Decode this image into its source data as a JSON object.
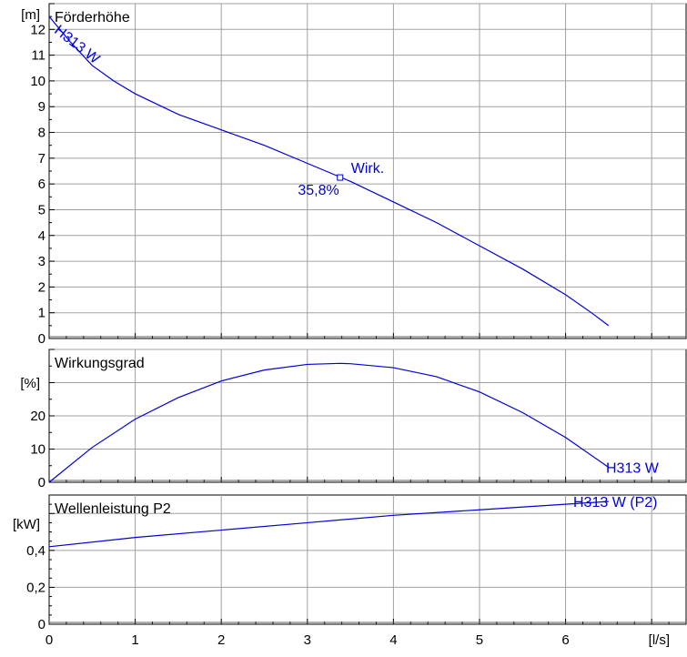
{
  "chart_data": [
    {
      "type": "line",
      "title": "Förderhöhe",
      "ylabel": "[m]",
      "xlim": [
        0,
        7.4
      ],
      "ylim": [
        0,
        13
      ],
      "yticks": [
        "0",
        "1",
        "2",
        "3",
        "4",
        "5",
        "6",
        "7",
        "8",
        "9",
        "10",
        "11",
        "12"
      ],
      "series": [
        {
          "name": "H313 W",
          "x": [
            0,
            0.25,
            0.5,
            0.75,
            1.0,
            1.5,
            2.0,
            2.5,
            3.0,
            3.5,
            4.0,
            4.5,
            5.0,
            5.5,
            6.0,
            6.3,
            6.5
          ],
          "y": [
            12.5,
            11.5,
            10.6,
            10.0,
            9.5,
            8.7,
            8.1,
            7.5,
            6.8,
            6.1,
            5.3,
            4.5,
            3.6,
            2.7,
            1.7,
            1.0,
            0.5
          ]
        }
      ],
      "annotations": [
        {
          "text": "Wirk.",
          "x": 3.38,
          "y": 6.25
        },
        {
          "text": "35,8%",
          "x": 3.38,
          "y": 6.25
        }
      ]
    },
    {
      "type": "line",
      "title": "Wirkungsgrad",
      "ylabel": "[%]",
      "xlim": [
        0,
        7.4
      ],
      "ylim": [
        0,
        40
      ],
      "yticks": [
        "0",
        "10",
        "20"
      ],
      "series": [
        {
          "name": "H313 W",
          "x": [
            0,
            0.5,
            1.0,
            1.5,
            2.0,
            2.5,
            3.0,
            3.38,
            3.5,
            4.0,
            4.5,
            5.0,
            5.5,
            6.0,
            6.5
          ],
          "y": [
            0,
            10.5,
            19.0,
            25.5,
            30.5,
            33.8,
            35.5,
            35.8,
            35.7,
            34.5,
            31.8,
            27.2,
            21.0,
            13.5,
            4.5
          ]
        }
      ]
    },
    {
      "type": "line",
      "title": "Wellenleistung P2",
      "ylabel": "[kW]",
      "xlabel": "[l/s]",
      "xlim": [
        0,
        7.4
      ],
      "ylim": [
        0,
        0.7
      ],
      "xticks": [
        "0",
        "1",
        "2",
        "3",
        "4",
        "5",
        "6"
      ],
      "yticks": [
        "0",
        "0,2",
        "0,4"
      ],
      "series": [
        {
          "name": "H313 W (P2)",
          "x": [
            0,
            1.0,
            2.0,
            3.0,
            4.0,
            5.0,
            6.0,
            6.5
          ],
          "y": [
            0.42,
            0.47,
            0.51,
            0.55,
            0.59,
            0.62,
            0.65,
            0.665
          ]
        }
      ]
    }
  ]
}
